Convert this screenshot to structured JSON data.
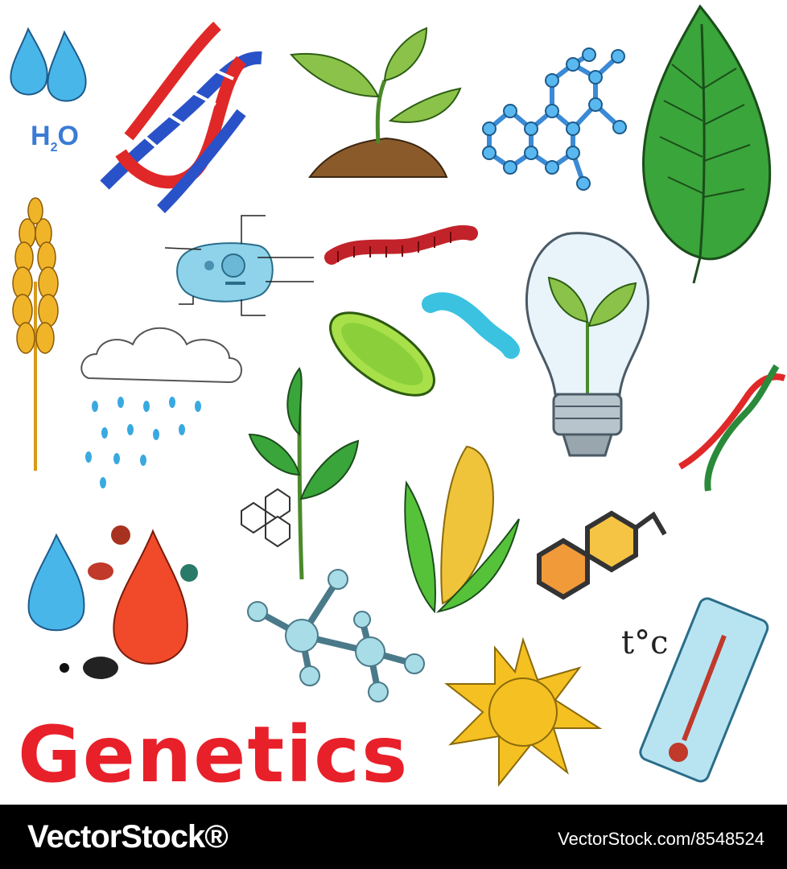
{
  "title": "Genetics",
  "labels": {
    "water_formula_h": "H",
    "water_formula_2": "2",
    "water_formula_o": "O",
    "temperature": "t°c"
  },
  "footer": {
    "brand": "VectorStock®",
    "reference": "VectorStock.com/8548524"
  },
  "icons": [
    "water-drops-icon",
    "dna-helix-icon",
    "sprout-icon",
    "molecule-icon",
    "leaf-icon",
    "wheat-icon",
    "cell-icon",
    "worm-icon",
    "bacteria-icon",
    "larva-icon",
    "bulb-plant-icon",
    "cloud-rain-icon",
    "dna-small-icon",
    "plant-icon",
    "corn-icon",
    "hexagon-molecule-icon",
    "drops-microbes-icon",
    "molecule-balls-icon",
    "sun-icon",
    "thermometer-icon"
  ],
  "colors": {
    "title": "#e8202a",
    "water": "#3aa9e0",
    "leaf": "#3aa53a",
    "dna_red": "#e02828",
    "dna_blue": "#2a52c8",
    "footer_bg": "#000000"
  }
}
